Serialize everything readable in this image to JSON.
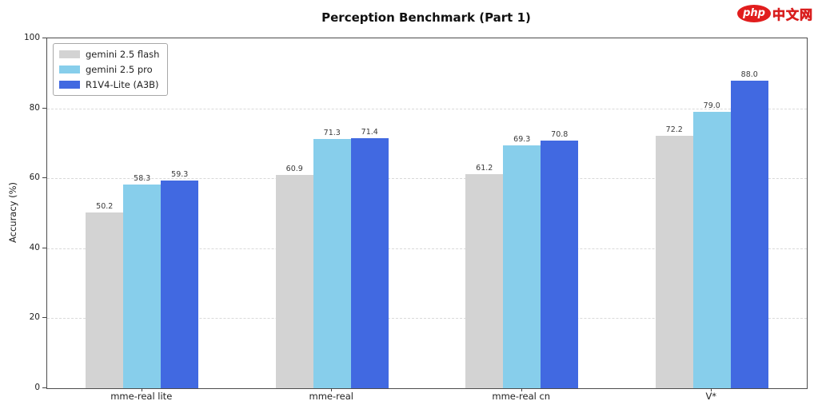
{
  "header": {
    "title": "Perception Benchmark (Part 1)"
  },
  "logo": {
    "badge": "php",
    "text": "中文网",
    "badge_color": "#e11d1d"
  },
  "chart_data": {
    "type": "bar",
    "title": "Perception Benchmark (Part 1)",
    "xlabel": "",
    "ylabel": "Accuracy (%)",
    "ylim": [
      0,
      100
    ],
    "yticks": [
      0,
      20,
      40,
      60,
      80,
      100
    ],
    "grid": "horizontal-dashed",
    "legend_position": "upper-left",
    "categories": [
      "mme-real lite",
      "mme-real",
      "mme-real cn",
      "V*"
    ],
    "series": [
      {
        "name": "gemini 2.5 flash",
        "color": "#d3d3d3",
        "values": [
          50.2,
          60.9,
          61.2,
          72.2
        ]
      },
      {
        "name": "gemini 2.5 pro",
        "color": "#87ceeb",
        "values": [
          58.3,
          71.3,
          69.3,
          79.0
        ]
      },
      {
        "name": "R1V4-Lite (A3B)",
        "color": "#4169e1",
        "values": [
          59.3,
          71.4,
          70.8,
          88.0
        ]
      }
    ]
  }
}
